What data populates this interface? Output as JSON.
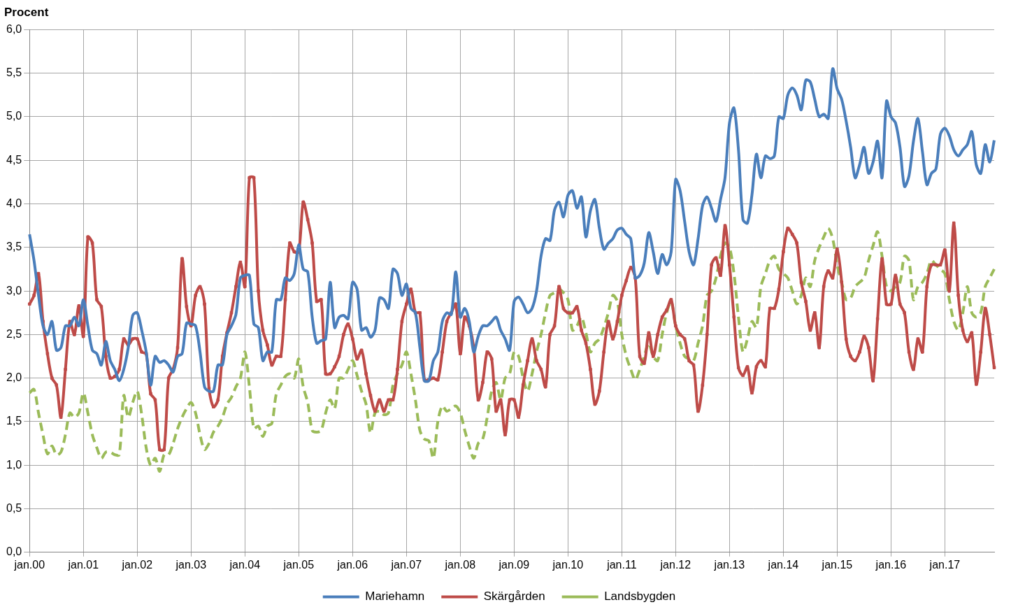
{
  "chart_data": {
    "type": "line",
    "title": "Procent",
    "categories": [
      "jan.00",
      null,
      null,
      null,
      null,
      null,
      null,
      null,
      null,
      null,
      null,
      null,
      "jan.01",
      null,
      null,
      null,
      null,
      null,
      null,
      null,
      null,
      null,
      null,
      null,
      "jan.02",
      null,
      null,
      null,
      null,
      null,
      null,
      null,
      null,
      null,
      null,
      null,
      "jan.03",
      null,
      null,
      null,
      null,
      null,
      null,
      null,
      null,
      null,
      null,
      null,
      "jan.04",
      null,
      null,
      null,
      null,
      null,
      null,
      null,
      null,
      null,
      null,
      null,
      "jan.05",
      null,
      null,
      null,
      null,
      null,
      null,
      null,
      null,
      null,
      null,
      null,
      "jan.06",
      null,
      null,
      null,
      null,
      null,
      null,
      null,
      null,
      null,
      null,
      null,
      "jan.07",
      null,
      null,
      null,
      null,
      null,
      null,
      null,
      null,
      null,
      null,
      null,
      "jan.08",
      null,
      null,
      null,
      null,
      null,
      null,
      null,
      null,
      null,
      null,
      null,
      "jan.09",
      null,
      null,
      null,
      null,
      null,
      null,
      null,
      null,
      null,
      null,
      null,
      "jan.10",
      null,
      null,
      null,
      null,
      null,
      null,
      null,
      null,
      null,
      null,
      null,
      "jan.11",
      null,
      null,
      null,
      null,
      null,
      null,
      null,
      null,
      null,
      null,
      null,
      "jan.12",
      null,
      null,
      null,
      null,
      null,
      null,
      null,
      null,
      null,
      null,
      null,
      "jan.13",
      null,
      null,
      null,
      null,
      null,
      null,
      null,
      null,
      null,
      null,
      null,
      "jan.14",
      null,
      null,
      null,
      null,
      null,
      null,
      null,
      null,
      null,
      null,
      null,
      "jan.15",
      null,
      null,
      null,
      null,
      null,
      null,
      null,
      null,
      null,
      null,
      null,
      "jan.16",
      null,
      null,
      null,
      null,
      null,
      null,
      null,
      null,
      null,
      null,
      null,
      "jan.17",
      null,
      null,
      null,
      null,
      null,
      null,
      null,
      null,
      null,
      null,
      null
    ],
    "series": [
      {
        "name": "Mariehamn",
        "color": "#4a7ebb",
        "line_style": "solid",
        "values": [
          3.65,
          3.35,
          2.95,
          2.6,
          2.5,
          2.65,
          2.32,
          2.35,
          2.6,
          2.6,
          2.7,
          2.6,
          2.9,
          2.6,
          2.32,
          2.28,
          2.15,
          2.42,
          2.2,
          2.1,
          1.97,
          2.1,
          2.35,
          2.72,
          2.75,
          2.55,
          2.3,
          1.92,
          2.25,
          2.18,
          2.2,
          2.15,
          2.07,
          2.25,
          2.28,
          2.63,
          2.62,
          2.6,
          2.3,
          1.9,
          1.85,
          1.85,
          2.15,
          2.15,
          2.5,
          2.6,
          2.73,
          3.15,
          3.18,
          3.18,
          2.62,
          2.58,
          2.2,
          2.3,
          2.3,
          2.9,
          2.9,
          3.15,
          3.12,
          3.2,
          3.53,
          3.25,
          3.22,
          2.7,
          2.4,
          2.43,
          2.45,
          3.1,
          2.58,
          2.7,
          2.72,
          2.68,
          3.1,
          3.02,
          2.55,
          2.58,
          2.47,
          2.55,
          2.92,
          2.9,
          2.8,
          3.25,
          3.2,
          2.95,
          3.08,
          2.8,
          2.75,
          2.35,
          1.97,
          1.97,
          2.2,
          2.3,
          2.65,
          2.75,
          2.73,
          3.22,
          2.7,
          2.8,
          2.65,
          2.3,
          2.48,
          2.6,
          2.6,
          2.65,
          2.7,
          2.55,
          2.45,
          2.32,
          2.88,
          2.93,
          2.85,
          2.75,
          2.8,
          3.0,
          3.4,
          3.6,
          3.58,
          3.93,
          4.02,
          3.85,
          4.1,
          4.15,
          3.95,
          4.08,
          3.62,
          3.92,
          4.05,
          3.72,
          3.48,
          3.55,
          3.6,
          3.7,
          3.72,
          3.65,
          3.6,
          3.15,
          3.18,
          3.32,
          3.67,
          3.45,
          3.2,
          3.42,
          3.3,
          3.45,
          4.28,
          4.15,
          3.8,
          3.45,
          3.3,
          3.6,
          3.98,
          4.08,
          3.95,
          3.8,
          4.05,
          4.3,
          4.93,
          5.1,
          4.62,
          3.82,
          3.78,
          4.1,
          4.57,
          4.3,
          4.55,
          4.52,
          4.55,
          5.0,
          4.98,
          5.25,
          5.33,
          5.25,
          5.08,
          5.42,
          5.4,
          5.2,
          5.0,
          5.03,
          4.98,
          5.55,
          5.32,
          5.2,
          4.95,
          4.65,
          4.3,
          4.45,
          4.65,
          4.35,
          4.48,
          4.72,
          4.3,
          5.18,
          5.0,
          4.93,
          4.65,
          4.2,
          4.32,
          4.72,
          4.98,
          4.6,
          4.22,
          4.35,
          4.4,
          4.8,
          4.87,
          4.78,
          4.62,
          4.55,
          4.62,
          4.68,
          4.83,
          4.45,
          4.35,
          4.68,
          4.48,
          4.73
        ]
      },
      {
        "name": "Skärgården",
        "color": "#be4b48",
        "marker": "square",
        "line_style": "solid",
        "values": [
          2.85,
          2.95,
          3.2,
          2.65,
          2.28,
          2.0,
          1.92,
          1.55,
          2.1,
          2.65,
          2.5,
          2.83,
          2.48,
          3.62,
          3.55,
          2.9,
          2.82,
          2.25,
          2.0,
          2.02,
          2.1,
          2.45,
          2.38,
          2.45,
          2.45,
          2.3,
          2.28,
          1.82,
          1.75,
          1.18,
          1.18,
          2.0,
          2.1,
          2.35,
          3.37,
          2.82,
          2.6,
          2.95,
          3.05,
          2.85,
          1.88,
          1.67,
          1.75,
          2.25,
          2.52,
          2.75,
          3.05,
          3.33,
          3.05,
          4.3,
          4.3,
          3.0,
          2.55,
          2.38,
          2.15,
          2.25,
          2.25,
          2.9,
          3.55,
          3.45,
          3.45,
          4.02,
          3.82,
          3.55,
          2.88,
          2.9,
          2.05,
          2.05,
          2.13,
          2.25,
          2.5,
          2.62,
          2.45,
          2.22,
          2.32,
          2.05,
          1.8,
          1.62,
          1.75,
          1.62,
          1.75,
          1.75,
          2.1,
          2.65,
          2.85,
          3.02,
          2.75,
          2.75,
          1.98,
          1.98,
          2.0,
          1.98,
          2.3,
          2.65,
          2.75,
          2.85,
          2.28,
          2.7,
          2.6,
          2.35,
          1.75,
          1.95,
          2.3,
          2.22,
          1.62,
          1.75,
          1.35,
          1.75,
          1.75,
          1.55,
          1.92,
          2.2,
          2.45,
          2.2,
          2.1,
          1.9,
          2.5,
          2.6,
          3.05,
          2.8,
          2.75,
          2.75,
          2.82,
          2.55,
          2.4,
          2.1,
          1.7,
          1.85,
          2.3,
          2.65,
          2.45,
          2.65,
          2.95,
          3.12,
          3.27,
          3.15,
          2.25,
          2.17,
          2.52,
          2.25,
          2.5,
          2.7,
          2.78,
          2.9,
          2.6,
          2.5,
          2.45,
          2.2,
          2.15,
          1.62,
          1.92,
          2.5,
          3.3,
          3.38,
          3.18,
          3.75,
          3.3,
          2.7,
          2.12,
          2.03,
          2.13,
          1.83,
          2.13,
          2.2,
          2.13,
          2.8,
          2.8,
          3.02,
          3.45,
          3.72,
          3.65,
          3.55,
          3.1,
          2.88,
          2.55,
          2.75,
          2.35,
          3.05,
          3.23,
          3.15,
          3.48,
          3.1,
          2.45,
          2.25,
          2.2,
          2.3,
          2.48,
          2.35,
          1.97,
          2.68,
          3.37,
          2.85,
          2.85,
          3.18,
          2.85,
          2.75,
          2.3,
          2.1,
          2.45,
          2.3,
          3.05,
          3.3,
          3.3,
          3.3,
          3.47,
          3.0,
          3.78,
          2.95,
          2.55,
          2.42,
          2.52,
          1.93,
          2.3,
          2.8,
          2.5,
          2.12
        ]
      },
      {
        "name": "Landsbygden",
        "color": "#9bbb59",
        "line_style": "dashed",
        "values": [
          1.83,
          1.87,
          1.6,
          1.35,
          1.13,
          1.22,
          1.12,
          1.15,
          1.35,
          1.6,
          1.55,
          1.6,
          1.83,
          1.6,
          1.35,
          1.2,
          1.08,
          1.15,
          1.15,
          1.12,
          1.12,
          1.8,
          1.55,
          1.72,
          1.85,
          1.58,
          1.2,
          1.0,
          1.08,
          0.93,
          1.12,
          1.12,
          1.25,
          1.42,
          1.55,
          1.65,
          1.72,
          1.6,
          1.35,
          1.18,
          1.25,
          1.38,
          1.45,
          1.55,
          1.7,
          1.78,
          1.9,
          2.0,
          2.3,
          1.9,
          1.42,
          1.45,
          1.33,
          1.45,
          1.48,
          1.82,
          1.92,
          2.02,
          2.05,
          2.0,
          2.22,
          1.9,
          1.72,
          1.4,
          1.38,
          1.4,
          1.6,
          1.75,
          1.65,
          2.0,
          2.0,
          2.1,
          2.2,
          2.03,
          1.85,
          1.7,
          1.37,
          1.6,
          1.62,
          1.58,
          1.6,
          1.92,
          2.05,
          2.15,
          2.3,
          2.05,
          1.75,
          1.4,
          1.3,
          1.28,
          1.08,
          1.5,
          1.68,
          1.62,
          1.65,
          1.68,
          1.6,
          1.4,
          1.22,
          1.08,
          1.25,
          1.3,
          1.55,
          1.85,
          1.95,
          1.75,
          2.0,
          2.05,
          2.3,
          2.25,
          2.0,
          1.85,
          2.05,
          2.3,
          2.5,
          2.75,
          2.95,
          2.98,
          3.02,
          2.98,
          2.9,
          2.55,
          2.6,
          2.7,
          2.52,
          2.3,
          2.4,
          2.45,
          2.58,
          2.75,
          2.95,
          2.88,
          2.5,
          2.25,
          2.1,
          1.98,
          2.1,
          2.25,
          2.4,
          2.25,
          2.2,
          2.5,
          2.75,
          2.88,
          2.6,
          2.4,
          2.25,
          2.22,
          2.2,
          2.4,
          2.6,
          2.95,
          3.0,
          3.15,
          3.4,
          3.55,
          3.5,
          3.2,
          2.7,
          2.3,
          2.45,
          2.65,
          2.58,
          3.05,
          3.2,
          3.35,
          3.4,
          3.25,
          3.2,
          3.15,
          3.0,
          2.85,
          2.95,
          3.15,
          3.05,
          3.35,
          3.5,
          3.62,
          3.72,
          3.6,
          3.3,
          3.1,
          2.9,
          2.92,
          3.05,
          3.1,
          3.15,
          3.35,
          3.52,
          3.68,
          3.4,
          3.05,
          3.0,
          3.05,
          3.1,
          3.4,
          3.35,
          2.9,
          3.05,
          3.1,
          3.2,
          3.35,
          3.3,
          3.25,
          3.2,
          2.9,
          2.65,
          2.55,
          2.75,
          3.05,
          2.75,
          2.7,
          2.75,
          3.05,
          3.15,
          3.25
        ]
      }
    ],
    "ylim": [
      0,
      6
    ],
    "yticks": [
      {
        "value": 0,
        "label": "0,0"
      },
      {
        "value": 0.5,
        "label": "0,5"
      },
      {
        "value": 1,
        "label": "1,0"
      },
      {
        "value": 1.5,
        "label": "1,5"
      },
      {
        "value": 2,
        "label": "2,0"
      },
      {
        "value": 2.5,
        "label": "2,5"
      },
      {
        "value": 3,
        "label": "3,0"
      },
      {
        "value": 3.5,
        "label": "3,5"
      },
      {
        "value": 4,
        "label": "4,0"
      },
      {
        "value": 4.5,
        "label": "4,5"
      },
      {
        "value": 5,
        "label": "5,0"
      },
      {
        "value": 5.5,
        "label": "5,5"
      },
      {
        "value": 6,
        "label": "6,0"
      }
    ],
    "grid": true,
    "legend": "bottom"
  }
}
